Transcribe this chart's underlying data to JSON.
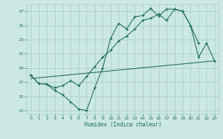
{
  "xlabel": "Humidex (Indice chaleur)",
  "bg_color": "#cce8e2",
  "grid_color": "#a8d0c8",
  "line_color": "#1a6b5a",
  "xlim": [
    -0.5,
    23.5
  ],
  "ylim": [
    12.5,
    28.0
  ],
  "xticks": [
    0,
    1,
    2,
    3,
    4,
    5,
    6,
    7,
    8,
    9,
    10,
    11,
    12,
    13,
    14,
    15,
    16,
    17,
    18,
    19,
    20,
    21,
    22,
    23
  ],
  "yticks": [
    13,
    15,
    17,
    19,
    21,
    23,
    25,
    27
  ],
  "line1_x": [
    0,
    1,
    2,
    3,
    4,
    5,
    6,
    7,
    8,
    9,
    10,
    11,
    12,
    13,
    14,
    15,
    16,
    17,
    18,
    19,
    20,
    21
  ],
  "line1_y": [
    18.0,
    16.8,
    16.7,
    15.8,
    15.2,
    14.2,
    13.2,
    13.0,
    16.2,
    19.0,
    23.2,
    25.3,
    24.5,
    26.2,
    26.4,
    27.4,
    26.3,
    27.3,
    27.3,
    27.0,
    25.0,
    22.5
  ],
  "line2_x": [
    0,
    1,
    2,
    3,
    4,
    5,
    6,
    7,
    8,
    9,
    10,
    11,
    12,
    13,
    14,
    15,
    16,
    17,
    18,
    19,
    20,
    21,
    22,
    23
  ],
  "line2_y": [
    18.0,
    16.8,
    16.7,
    16.2,
    16.5,
    17.2,
    16.5,
    17.8,
    19.2,
    20.5,
    21.5,
    22.8,
    23.5,
    24.5,
    25.7,
    26.0,
    26.6,
    25.7,
    27.3,
    27.0,
    25.0,
    20.5,
    22.5,
    20.0
  ],
  "line3_x": [
    0,
    23
  ],
  "line3_y": [
    17.5,
    20.0
  ]
}
